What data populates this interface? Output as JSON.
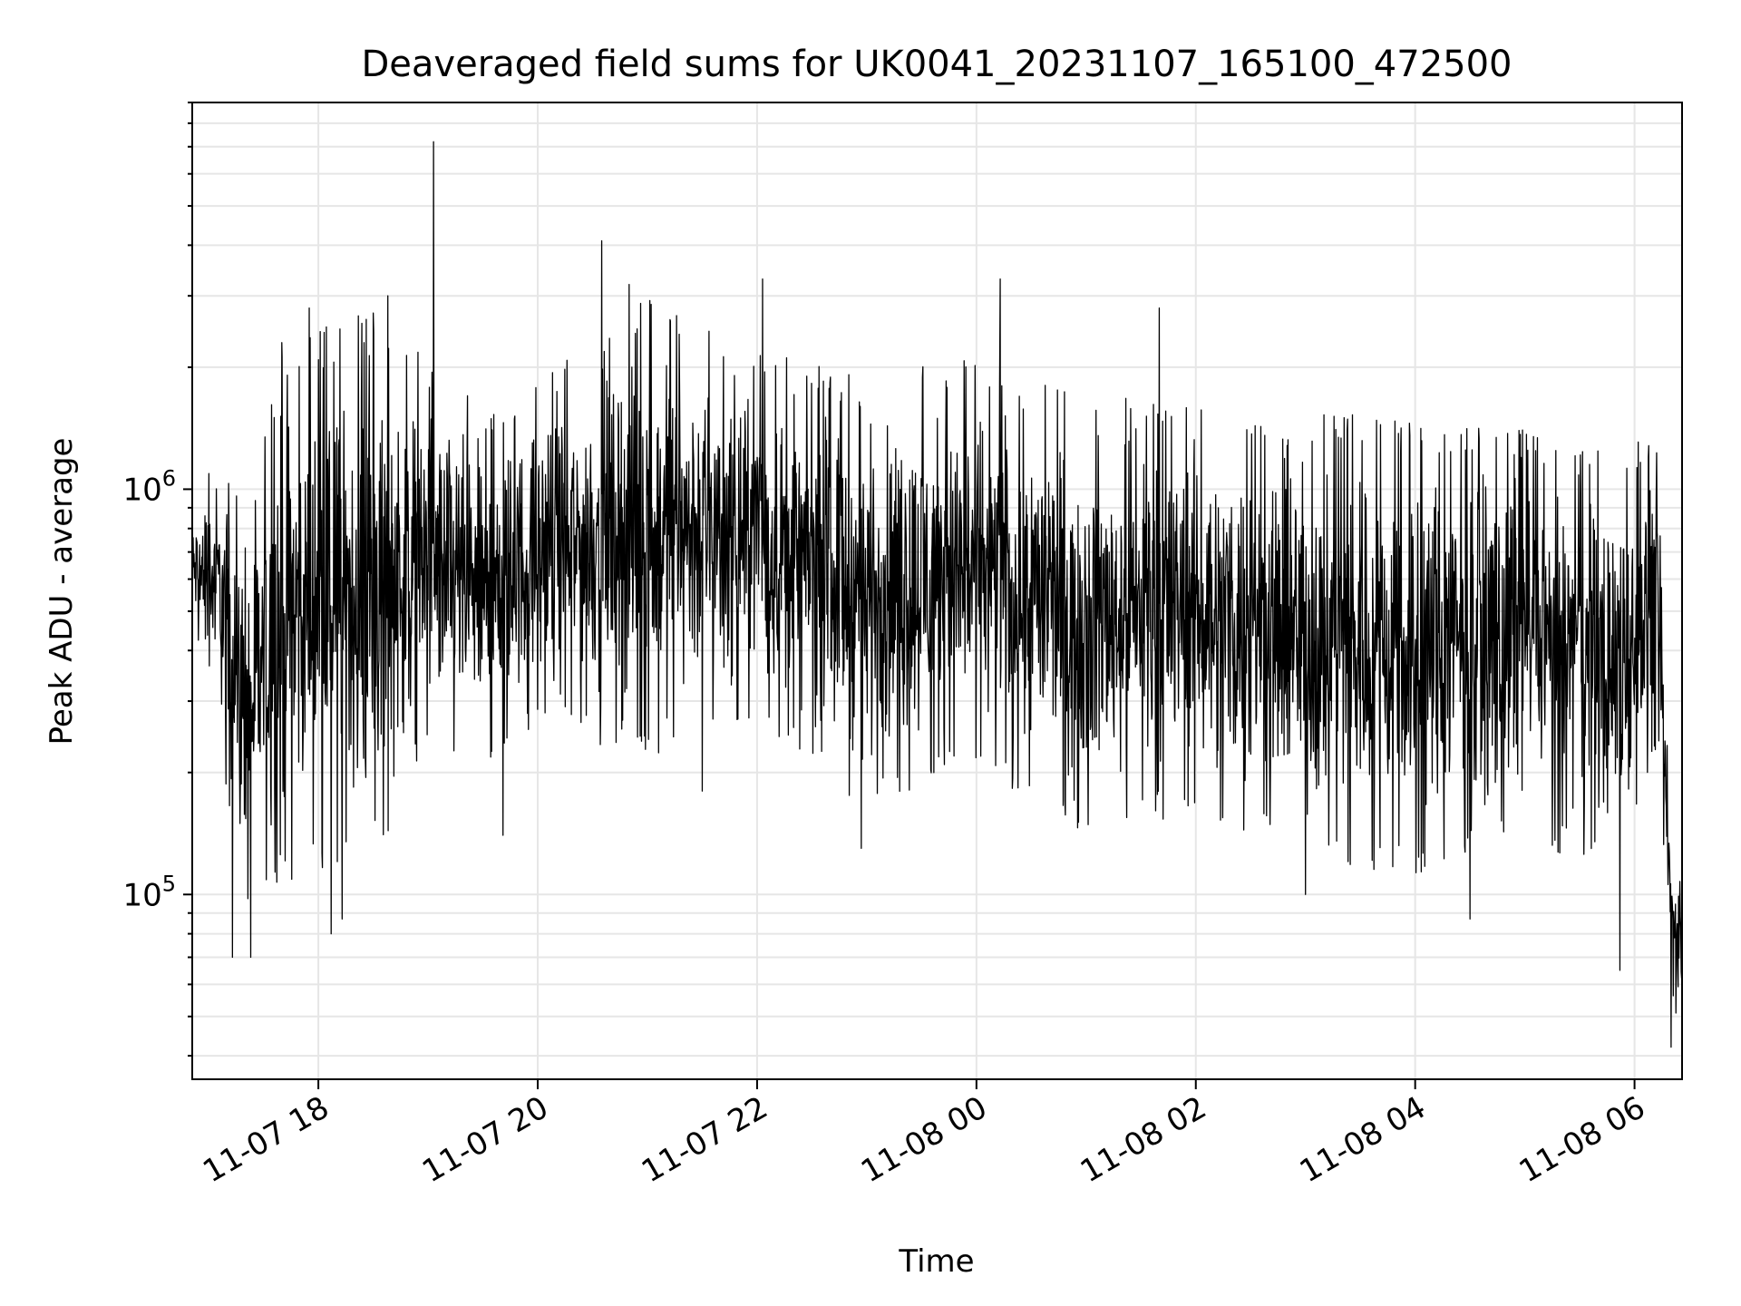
{
  "chart_data": {
    "type": "line",
    "title": "Deaveraged field sums for UK0041_20231107_165100_472500",
    "xlabel": "Time",
    "ylabel": "Peak ADU - average",
    "yscale": "log",
    "xlim": [
      "2023-11-07 16:51",
      "2023-11-08 06:26"
    ],
    "ylim": [
      35000,
      9000000
    ],
    "grid": true,
    "x_ticks": [
      {
        "label": "11-07 18",
        "t": "2023-11-07 18:00"
      },
      {
        "label": "11-07 20",
        "t": "2023-11-07 20:00"
      },
      {
        "label": "11-07 22",
        "t": "2023-11-07 22:00"
      },
      {
        "label": "11-08 00",
        "t": "2023-11-08 00:00"
      },
      {
        "label": "11-08 02",
        "t": "2023-11-08 02:00"
      },
      {
        "label": "11-08 04",
        "t": "2023-11-08 04:00"
      },
      {
        "label": "11-08 06",
        "t": "2023-11-08 06:00"
      }
    ],
    "y_ticks": [
      {
        "base": "10",
        "exp": "5",
        "value": 100000
      },
      {
        "base": "10",
        "exp": "6",
        "value": 1000000
      }
    ],
    "series": [
      {
        "color": "#000000",
        "envelope": [
          {
            "t": "2023-11-07 16:51",
            "low": 450000,
            "high": 900000
          },
          {
            "t": "2023-11-07 17:05",
            "low": 250000,
            "high": 1400000
          },
          {
            "t": "2023-11-07 17:20",
            "low": 80000,
            "high": 900000
          },
          {
            "t": "2023-11-07 17:40",
            "low": 100000,
            "high": 2400000
          },
          {
            "t": "2023-11-07 18:00",
            "low": 100000,
            "high": 2700000
          },
          {
            "t": "2023-11-07 18:30",
            "low": 110000,
            "high": 3000000
          },
          {
            "t": "2023-11-07 19:00",
            "low": 200000,
            "high": 2200000
          },
          {
            "t": "2023-11-07 19:30",
            "low": 180000,
            "high": 1700000
          },
          {
            "t": "2023-11-07 20:00",
            "low": 250000,
            "high": 1900000
          },
          {
            "t": "2023-11-07 21:00",
            "low": 200000,
            "high": 3300000
          },
          {
            "t": "2023-11-07 22:00",
            "low": 250000,
            "high": 2400000
          },
          {
            "t": "2023-11-07 23:00",
            "low": 150000,
            "high": 2000000
          },
          {
            "t": "2023-11-08 00:00",
            "low": 190000,
            "high": 2300000
          },
          {
            "t": "2023-11-08 01:00",
            "low": 130000,
            "high": 1800000
          },
          {
            "t": "2023-11-08 02:00",
            "low": 150000,
            "high": 1800000
          },
          {
            "t": "2023-11-08 03:00",
            "low": 110000,
            "high": 1700000
          },
          {
            "t": "2023-11-08 04:00",
            "low": 100000,
            "high": 1600000
          },
          {
            "t": "2023-11-08 05:00",
            "low": 130000,
            "high": 1500000
          },
          {
            "t": "2023-11-08 05:50",
            "low": 100000,
            "high": 1300000
          },
          {
            "t": "2023-11-08 06:12",
            "low": 200000,
            "high": 1500000
          },
          {
            "t": "2023-11-08 06:20",
            "low": 42000,
            "high": 200000
          },
          {
            "t": "2023-11-08 06:26",
            "low": 50000,
            "high": 110000
          }
        ],
        "spikes": [
          {
            "t": "2023-11-07 17:40",
            "value": 2300000
          },
          {
            "t": "2023-11-07 17:55",
            "value": 2800000
          },
          {
            "t": "2023-11-07 18:25",
            "value": 2300000
          },
          {
            "t": "2023-11-07 18:38",
            "value": 3000000
          },
          {
            "t": "2023-11-07 19:03",
            "value": 7200000
          },
          {
            "t": "2023-11-07 20:35",
            "value": 4100000
          },
          {
            "t": "2023-11-07 20:50",
            "value": 3200000
          },
          {
            "t": "2023-11-07 22:03",
            "value": 3300000
          },
          {
            "t": "2023-11-08 00:13",
            "value": 3300000
          },
          {
            "t": "2023-11-08 01:40",
            "value": 2800000
          },
          {
            "t": "2023-11-07 17:13",
            "value": 70000
          },
          {
            "t": "2023-11-07 17:23",
            "value": 70000
          },
          {
            "t": "2023-11-07 18:07",
            "value": 80000
          },
          {
            "t": "2023-11-07 18:13",
            "value": 87000
          },
          {
            "t": "2023-11-07 19:41",
            "value": 140000
          },
          {
            "t": "2023-11-07 21:30",
            "value": 180000
          },
          {
            "t": "2023-11-07 22:57",
            "value": 130000
          },
          {
            "t": "2023-11-08 03:00",
            "value": 100000
          },
          {
            "t": "2023-11-08 04:30",
            "value": 87000
          },
          {
            "t": "2023-11-08 05:52",
            "value": 65000
          },
          {
            "t": "2023-11-08 06:20",
            "value": 42000
          }
        ]
      }
    ]
  }
}
